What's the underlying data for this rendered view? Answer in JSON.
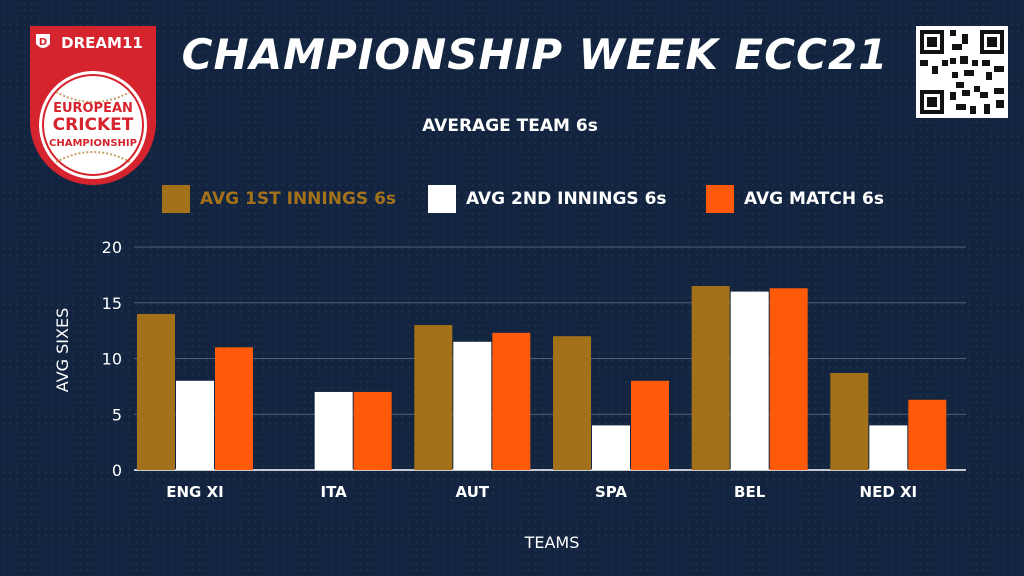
{
  "header": {
    "title": "CHAMPIONSHIP WEEK ECC21",
    "logo": {
      "brand": "DREAM11",
      "line1": "EUROPEAN",
      "line2": "CRICKET",
      "line3": "CHAMPIONSHIP"
    },
    "qr_icon": "qr-code-icon"
  },
  "colors": {
    "background": "#12243f",
    "series1": "#a3711a",
    "series2": "#ffffff",
    "series3": "#ff5a0a",
    "logo_red": "#d6242e"
  },
  "chart_data": {
    "type": "bar",
    "title": "AVERAGE TEAM 6s",
    "xlabel": "TEAMS",
    "ylabel": "AVG SIXES",
    "categories": [
      "ENG XI",
      "ITA",
      "AUT",
      "SPA",
      "BEL",
      "NED XI"
    ],
    "series": [
      {
        "name": "AVG 1ST INNINGS 6s",
        "color": "#a3711a",
        "values": [
          14,
          0,
          13,
          12,
          16.5,
          8.7
        ]
      },
      {
        "name": "AVG 2ND INNINGS 6s",
        "color": "#ffffff",
        "values": [
          8,
          7,
          11.5,
          4,
          16,
          4
        ]
      },
      {
        "name": "AVG MATCH 6s",
        "color": "#ff5a0a",
        "values": [
          11,
          7,
          12.3,
          8,
          16.3,
          6.3
        ]
      }
    ],
    "ylim": [
      0,
      20
    ],
    "yticks": [
      0,
      5,
      10,
      15,
      20
    ],
    "grid": true,
    "legend_position": "top"
  }
}
